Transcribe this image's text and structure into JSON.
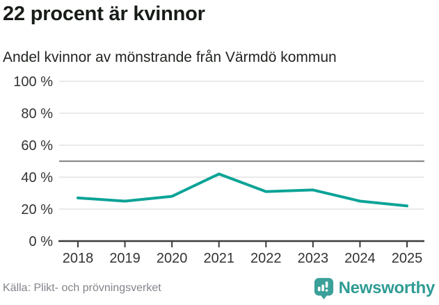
{
  "header": {
    "title": "22 procent är kvinnor",
    "subtitle": "Andel kvinnor av mönstrande från Värmdö kommun"
  },
  "chart_data": {
    "type": "line",
    "title": "22 procent är kvinnor",
    "subtitle": "Andel kvinnor av mönstrande från Värmdö kommun",
    "categories": [
      "2018",
      "2019",
      "2020",
      "2021",
      "2022",
      "2023",
      "2024",
      "2025"
    ],
    "values": [
      27,
      25,
      28,
      42,
      31,
      32,
      25,
      22
    ],
    "unit": "%",
    "ylim": [
      0,
      100
    ],
    "yticks": [
      0,
      20,
      40,
      60,
      80,
      100
    ],
    "ytick_suffix": " %",
    "reference_line": 50,
    "grid": true,
    "legend": "none",
    "line_color": "#0ca397"
  },
  "footer": {
    "source": "Källa: Plikt- och prövningsverket",
    "brand_name": "Newsworthy"
  },
  "colors": {
    "line": "#0ca397",
    "brand_teal_icon": "#3aa09a",
    "brand_teal_text": "#2f9c94",
    "grid": "#e4e4e4",
    "reference_line": "#8a8a8e",
    "axis": "#3a3a3a",
    "tick_text": "#333333",
    "title_text": "#171c17",
    "source_text": "#83838b",
    "background": "#ffffff"
  }
}
